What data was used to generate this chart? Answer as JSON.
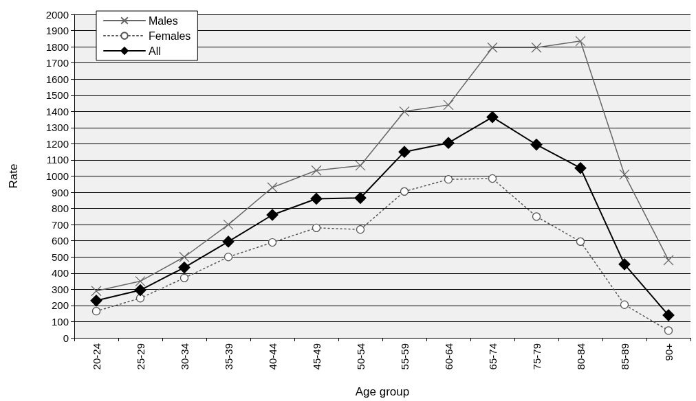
{
  "chart_data": {
    "type": "line",
    "xlabel": "Age group",
    "ylabel": "Rate",
    "categories": [
      "20-24",
      "25-29",
      "30-34",
      "35-39",
      "40-44",
      "45-49",
      "50-54",
      "55-59",
      "60-64",
      "65-74",
      "75-79",
      "80-84",
      "85-89",
      "90+"
    ],
    "ylim": [
      0,
      2000
    ],
    "yticks": [
      0,
      100,
      200,
      300,
      400,
      500,
      600,
      700,
      800,
      900,
      1000,
      1100,
      1200,
      1300,
      1400,
      1500,
      1600,
      1700,
      1800,
      1900,
      2000
    ],
    "grid": "y",
    "legend": "top left",
    "series": [
      {
        "name": "Males",
        "color": "#666666",
        "marker": "cross",
        "line_style": "solid",
        "values": [
          290,
          350,
          500,
          700,
          930,
          1035,
          1065,
          1400,
          1440,
          1795,
          1795,
          1835,
          1010,
          480
        ]
      },
      {
        "name": "Females",
        "color": "#555555",
        "marker": "circle",
        "line_style": "dotted",
        "values": [
          165,
          245,
          370,
          500,
          590,
          680,
          670,
          905,
          980,
          985,
          750,
          595,
          205,
          45
        ]
      },
      {
        "name": "All",
        "color": "#000000",
        "marker": "diamond",
        "line_style": "solid",
        "values": [
          230,
          295,
          435,
          595,
          760,
          860,
          865,
          1150,
          1205,
          1365,
          1195,
          1050,
          455,
          140
        ]
      }
    ]
  }
}
